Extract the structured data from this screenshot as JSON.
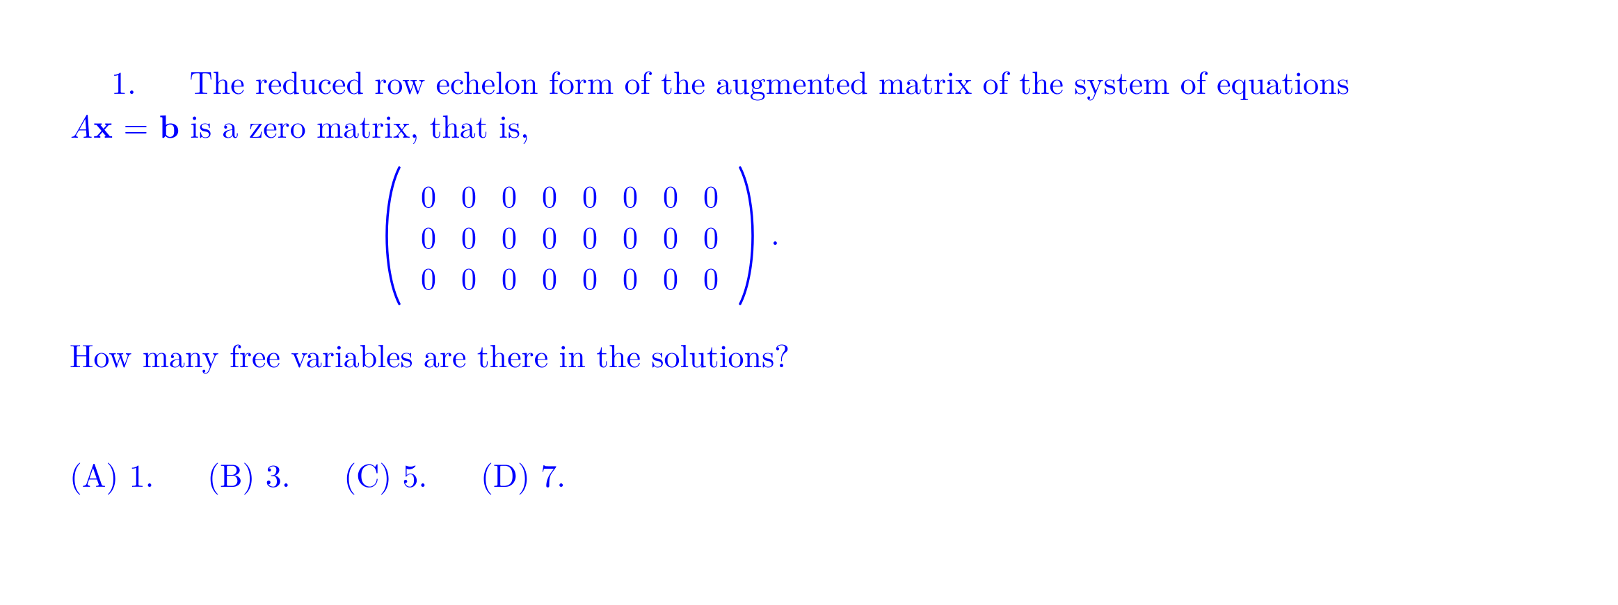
{
  "text_color": "#0000ff",
  "background_color": "#ffffff",
  "font_family": "CMU Serif, Latin Modern Roman, Times New Roman, Georgia, serif",
  "font_size_pt": 34,
  "problem": {
    "number": "1.",
    "line1_part1": "The reduced row echelon form of the augmented matrix of the system of equations",
    "line2_A": "A",
    "line2_x": "x",
    "line2_eq": " = ",
    "line2_b": "b",
    "line2_rest": " is a zero matrix, that is,",
    "question": "How many free variables are there in the solutions?"
  },
  "matrix": {
    "rows": 3,
    "cols": 8,
    "values": [
      [
        "0",
        "0",
        "0",
        "0",
        "0",
        "0",
        "0",
        "0"
      ],
      [
        "0",
        "0",
        "0",
        "0",
        "0",
        "0",
        "0",
        "0"
      ],
      [
        "0",
        "0",
        "0",
        "0",
        "0",
        "0",
        "0",
        "0"
      ]
    ],
    "delimiter": "parentheses",
    "trailing_period": "."
  },
  "choices": {
    "A_label": "(A) ",
    "A_value": "1.",
    "B_label": "(B) ",
    "B_value": "3.",
    "C_label": "(C) ",
    "C_value": "5.",
    "D_label": "(D) ",
    "D_value": "7."
  }
}
